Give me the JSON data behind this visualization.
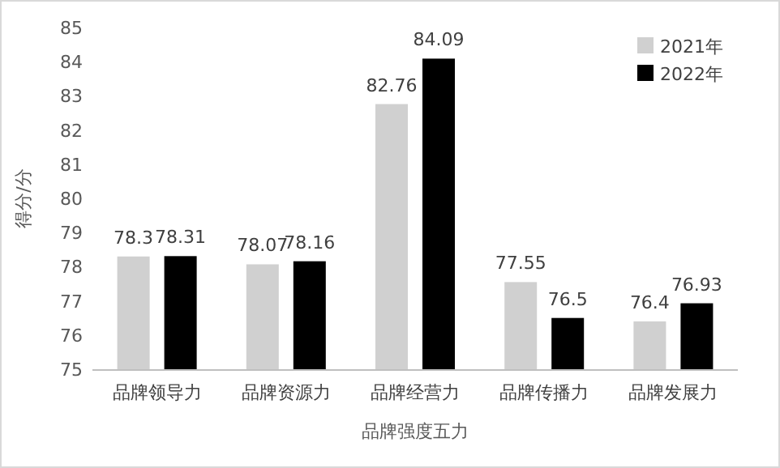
{
  "chart_data": {
    "type": "bar",
    "xlabel": "品牌强度五力",
    "ylabel": "得分/分",
    "categories": [
      "品牌领导力",
      "品牌资源力",
      "品牌经营力",
      "品牌传播力",
      "品牌发展力"
    ],
    "series": [
      {
        "name": "2021年",
        "color": "#d0d0d0",
        "values": [
          78.3,
          78.07,
          82.76,
          77.55,
          76.4
        ]
      },
      {
        "name": "2022年",
        "color": "#000000",
        "values": [
          78.31,
          78.16,
          84.09,
          76.5,
          76.93
        ]
      }
    ],
    "ylim": [
      75,
      85
    ],
    "yticks": [
      75,
      76,
      77,
      78,
      79,
      80,
      81,
      82,
      83,
      84,
      85
    ],
    "data_labels": true,
    "legend": "top right",
    "grid": false
  }
}
